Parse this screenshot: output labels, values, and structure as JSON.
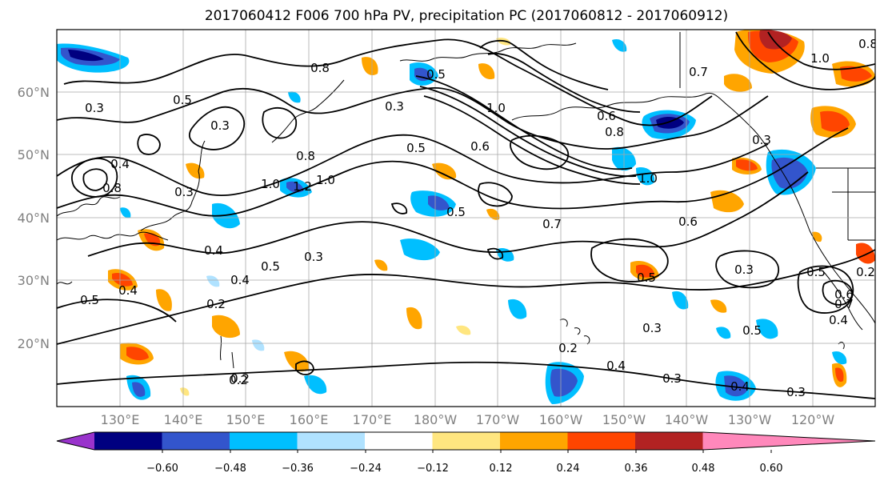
{
  "title": "2017060412 F006 700 hPa PV, precipitation PC (2017060812 - 2017060912)",
  "lat_labels": [
    "60°N",
    "50°N",
    "40°N",
    "30°N",
    "20°N"
  ],
  "lon_labels": [
    "130°E",
    "140°E",
    "150°E",
    "160°E",
    "170°E",
    "180°W",
    "170°W",
    "160°W",
    "150°W",
    "140°W",
    "130°W",
    "120°W"
  ],
  "colorbar": {
    "colors": [
      "#9933cc",
      "#000080",
      "#3355cc",
      "#00bfff",
      "#b0e2ff",
      "#ffffff",
      "#ffe680",
      "#ffa500",
      "#ff4500",
      "#b22222",
      "#ff88bb"
    ],
    "tick_labels": [
      "−0.60",
      "−0.48",
      "−0.36",
      "−0.24",
      "−0.12",
      "0.12",
      "0.24",
      "0.36",
      "0.48",
      "0.60"
    ],
    "extend": "both"
  },
  "contour_labels": [
    "0.2",
    "0.5",
    "0.8",
    "0.3",
    "0.5",
    "0.3",
    "0.8",
    "1.0",
    "0.3",
    "1.0",
    "0.6",
    "0.7",
    "1.0",
    "0.8",
    "0.3",
    "0.4",
    "0.8",
    "1.0",
    "1.2",
    "0.5",
    "0.4",
    "0.7",
    "1.0",
    "0.8",
    "0.4",
    "0.6",
    "0.4",
    "0.5",
    "0.3",
    "0.6",
    "0.7",
    "0.5",
    "0.4",
    "0.5",
    "0.3",
    "0.2",
    "0.5",
    "0.3",
    "0.4",
    "0.5",
    "0.3",
    "0.2",
    "0.3",
    "0.4",
    "0.3",
    "0.2",
    "0.2",
    "0.5",
    "0.6"
  ]
}
